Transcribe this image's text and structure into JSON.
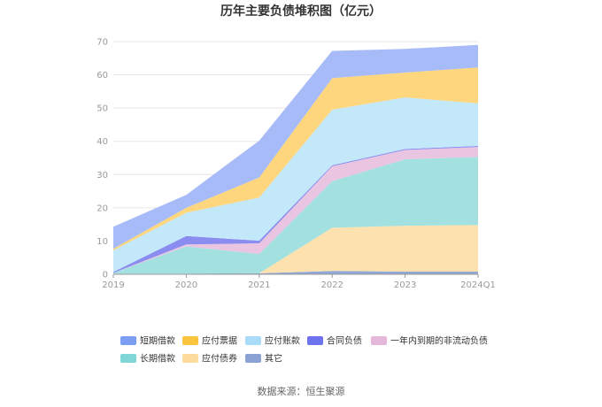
{
  "chart_data": {
    "type": "area",
    "stacked": true,
    "title": "历年主要负债堆积图（亿元）",
    "categories": [
      "2019",
      "2020",
      "2021",
      "2022",
      "2023",
      "2024Q1"
    ],
    "ylim": [
      0,
      70
    ],
    "yticks": [
      0,
      10,
      20,
      30,
      40,
      50,
      60,
      70
    ],
    "grid": true,
    "legend_position": "bottom",
    "series": [
      {
        "name": "其它",
        "color": "#8fa8d8",
        "values": [
          0.2,
          0.2,
          0.3,
          1.0,
          0.8,
          0.8
        ]
      },
      {
        "name": "应付债券",
        "color": "#fde1ae",
        "values": [
          0,
          0,
          0,
          13.0,
          13.8,
          14.0
        ]
      },
      {
        "name": "长期借款",
        "color": "#a3e1e1",
        "values": [
          0.2,
          8.2,
          5.8,
          14.0,
          20.0,
          20.5
        ]
      },
      {
        "name": "一年内到期的非流动负债",
        "color": "#e9c5e2",
        "values": [
          0,
          0.6,
          3.2,
          4.5,
          2.8,
          3.0
        ]
      },
      {
        "name": "合同负债",
        "color": "#8a8cf0",
        "values": [
          0.3,
          2.5,
          0.8,
          0.3,
          0.3,
          0.3
        ]
      },
      {
        "name": "应付账款",
        "color": "#c3e8fa",
        "values": [
          6.5,
          7.0,
          13.0,
          16.7,
          15.5,
          12.8
        ]
      },
      {
        "name": "应付票据",
        "color": "#fdd67e",
        "values": [
          0.5,
          1.5,
          6.0,
          9.5,
          7.5,
          10.8
        ]
      },
      {
        "name": "短期借款",
        "color": "#a7bbf8",
        "values": [
          6.6,
          3.9,
          11.1,
          8.2,
          7.1,
          6.8
        ]
      }
    ],
    "legend_order": [
      "短期借款",
      "应付票据",
      "应付账款",
      "合同负债",
      "一年内到期的非流动负债",
      "长期借款",
      "应付债券",
      "其它"
    ],
    "legend_marker_colors": {
      "短期借款": "#7b9ef2",
      "应付票据": "#fbc43e",
      "应付账款": "#a8dcf8",
      "合同负债": "#6e72ee",
      "一年内到期的非流动负债": "#e3b8da",
      "长期借款": "#7ed6d6",
      "应付债券": "#fcdb9c",
      "其它": "#8aa3d4"
    }
  },
  "source": "数据来源：恒生聚源"
}
